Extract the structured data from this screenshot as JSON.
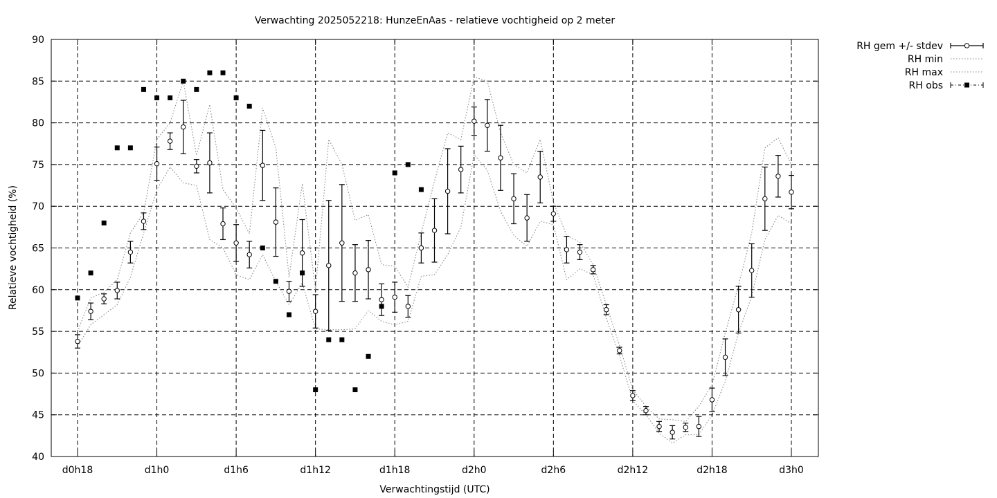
{
  "chart_data": {
    "type": "line",
    "title": "Verwachting 2025052218: HunzeEnAas - relatieve vochtigheid op 2 meter",
    "xlabel": "Verwachtingstijd (UTC)",
    "ylabel": "Relatieve vochtigheid (%)",
    "x_tick_labels": [
      "d0h18",
      "d1h0",
      "d1h6",
      "d1h12",
      "d1h18",
      "d2h0",
      "d2h6",
      "d2h12",
      "d2h18",
      "d3h0"
    ],
    "x_tick_hours": [
      18,
      24,
      30,
      36,
      42,
      48,
      54,
      60,
      66,
      72
    ],
    "xlim_hours": [
      16,
      72
    ],
    "ylim": [
      40,
      90
    ],
    "yticks": [
      40,
      45,
      50,
      55,
      60,
      65,
      70,
      75,
      80,
      85,
      90
    ],
    "grid": true,
    "legend_position": "outside-top-right",
    "hours": [
      18,
      19,
      20,
      21,
      22,
      23,
      24,
      25,
      26,
      27,
      28,
      29,
      30,
      31,
      32,
      33,
      34,
      35,
      36,
      37,
      38,
      39,
      40,
      41,
      42,
      43,
      44,
      45,
      46,
      47,
      48,
      49,
      50,
      51,
      52,
      53,
      54,
      55,
      56,
      57,
      58,
      59,
      60,
      61,
      62,
      63,
      64,
      65,
      66,
      67,
      68,
      69,
      70,
      71,
      72
    ],
    "series": [
      {
        "name": "RH gem +/- stdev",
        "style": "errorbars-open-circle",
        "values": [
          53.8,
          57.4,
          58.9,
          59.9,
          64.5,
          68.2,
          75.1,
          77.8,
          79.5,
          74.8,
          75.2,
          67.9,
          65.6,
          64.2,
          74.9,
          68.1,
          59.8,
          64.4,
          57.4,
          62.9,
          65.6,
          62.0,
          62.4,
          58.8,
          59.1,
          58.0,
          65.0,
          67.1,
          71.8,
          74.4,
          80.2,
          79.7,
          75.8,
          70.9,
          68.6,
          73.5,
          69.1,
          64.8,
          64.5,
          62.4,
          57.6,
          52.7,
          47.3,
          45.5,
          43.6,
          42.9,
          43.5,
          43.6,
          46.8,
          51.9,
          57.6,
          62.3,
          70.9,
          73.6,
          71.7
        ],
        "stdev": [
          0.8,
          1.0,
          0.6,
          1.0,
          1.3,
          1.0,
          2.0,
          1.0,
          3.2,
          0.8,
          3.6,
          1.9,
          2.2,
          1.6,
          4.2,
          4.1,
          1.2,
          4.0,
          2.0,
          7.8,
          7.0,
          3.4,
          3.5,
          1.9,
          1.8,
          1.3,
          1.8,
          3.8,
          5.1,
          2.8,
          1.7,
          3.1,
          3.9,
          3.0,
          2.8,
          3.1,
          0.9,
          1.6,
          0.9,
          0.5,
          0.6,
          0.4,
          0.6,
          0.5,
          0.6,
          0.8,
          0.5,
          1.2,
          1.4,
          2.2,
          2.8,
          3.2,
          3.8,
          2.5,
          2.0
        ]
      },
      {
        "name": "RH min",
        "style": "dotted",
        "values": [
          53.2,
          55.8,
          57.0,
          58.2,
          61.5,
          66.8,
          72.0,
          74.7,
          72.8,
          72.5,
          66.0,
          65.0,
          61.8,
          61.2,
          64.2,
          61.0,
          58.2,
          60.8,
          55.3,
          55.2,
          55.2,
          55.3,
          57.5,
          56.2,
          55.8,
          56.2,
          61.6,
          61.8,
          64.2,
          67.5,
          76.2,
          74.3,
          69.4,
          66.5,
          65.2,
          68.2,
          67.8,
          61.2,
          62.5,
          61.8,
          56.6,
          52.1,
          46.7,
          45.0,
          42.8,
          41.6,
          42.6,
          42.6,
          45.0,
          49.0,
          54.8,
          59.2,
          66.0,
          68.9,
          67.9
        ]
      },
      {
        "name": "RH max",
        "style": "dotted",
        "values": [
          55.0,
          59.0,
          59.7,
          61.2,
          66.8,
          69.2,
          78.0,
          80.0,
          85.0,
          76.1,
          82.2,
          72.0,
          69.8,
          66.7,
          81.8,
          77.0,
          61.5,
          72.7,
          60.0,
          78.0,
          75.0,
          68.3,
          69.0,
          63.0,
          62.8,
          60.3,
          66.8,
          73.0,
          78.8,
          78.0,
          85.5,
          85.0,
          78.8,
          75.0,
          74.0,
          78.0,
          70.5,
          66.5,
          65.7,
          63.0,
          58.2,
          53.3,
          48.0,
          46.0,
          44.5,
          44.4,
          44.2,
          46.0,
          48.6,
          54.8,
          60.5,
          66.8,
          77.0,
          78.2,
          75.0
        ]
      },
      {
        "name": "RH obs",
        "style": "filled-square",
        "points": [
          [
            18,
            59
          ],
          [
            19,
            62
          ],
          [
            20,
            68
          ],
          [
            21,
            77
          ],
          [
            22,
            77
          ],
          [
            23,
            84
          ],
          [
            24,
            83
          ],
          [
            25,
            83
          ],
          [
            26,
            85
          ],
          [
            27,
            84
          ],
          [
            28,
            86
          ],
          [
            29,
            86
          ],
          [
            30,
            83
          ],
          [
            31,
            82
          ],
          [
            32,
            65
          ],
          [
            33,
            61
          ],
          [
            34,
            57
          ],
          [
            35,
            62
          ],
          [
            36,
            48
          ],
          [
            37,
            54
          ],
          [
            38,
            54
          ],
          [
            39,
            48
          ],
          [
            40,
            52
          ],
          [
            41,
            58
          ],
          [
            42,
            74
          ],
          [
            43,
            75
          ],
          [
            44,
            72
          ]
        ]
      }
    ]
  }
}
